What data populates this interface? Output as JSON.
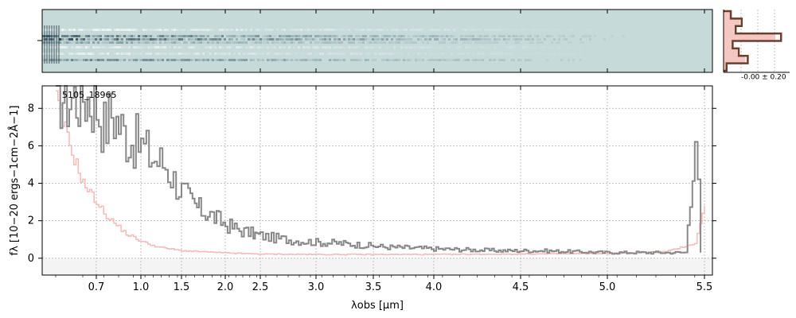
{
  "chart_data": [
    {
      "type": "heatmap",
      "panel": "2d-spectrum",
      "description_values": "2D spectral image, rows = spatial, columns = wavelength",
      "colors": {
        "background": "#c5dad9",
        "light": "#ffffff",
        "dark": "#0b1a2a"
      },
      "x_axis_shared": true
    },
    {
      "type": "line",
      "panel": "spatial-profile",
      "tick_label": "-0.00 ± 0.20",
      "x": [
        0,
        0.15,
        0.3,
        0.45,
        0.55,
        0.65,
        0.75,
        0.85,
        1.0
      ],
      "profile": [
        0.05,
        0.12,
        0.3,
        0.2,
        0.95,
        0.15,
        0.25,
        0.4,
        0.05
      ],
      "colors": {
        "line": "#6b3e2e",
        "fill": "#f5c7c2"
      }
    },
    {
      "type": "line",
      "panel": "1d-spectrum",
      "object_label": "5105_18965",
      "xlabel": "λobs [μm]",
      "ylabel": "fλ [10−20 ergs−1cm−2Å−1]",
      "x_ticks": [
        "0.7",
        "1.0",
        "1.5",
        "2.0",
        "2.5",
        "3.0",
        "3.5",
        "4.0",
        "4.5",
        "5.0",
        "5.5"
      ],
      "x_tick_positions": [
        0.7,
        1.0,
        1.5,
        2.0,
        2.5,
        3.0,
        3.5,
        4.0,
        4.5,
        5.0,
        5.5
      ],
      "y_ticks": [
        "0",
        "2",
        "4",
        "6",
        "8"
      ],
      "y_tick_positions": [
        0,
        2,
        4,
        6,
        8
      ],
      "ylim": [
        -0.9,
        9.2
      ],
      "xlim": [
        0.5,
        5.52
      ],
      "x_scale": "sqrt-like",
      "grid": true,
      "series": [
        {
          "role": "flux",
          "color": "#888888",
          "x": [
            0.55,
            0.6,
            0.65,
            0.7,
            0.75,
            0.8,
            0.9,
            1.0,
            1.1,
            1.2,
            1.3,
            1.4,
            1.5,
            1.6,
            1.7,
            1.8,
            1.9,
            2.0,
            2.2,
            2.4,
            2.6,
            2.8,
            3.0,
            3.2,
            3.4,
            3.6,
            3.8,
            4.0,
            4.2,
            4.4,
            4.6,
            4.8,
            5.0,
            5.2,
            5.4,
            5.45,
            5.48
          ],
          "y": [
            9.0,
            8.5,
            8.8,
            8.2,
            7.0,
            7.8,
            6.5,
            6.0,
            5.5,
            5.2,
            5.0,
            4.2,
            3.6,
            3.0,
            2.6,
            2.4,
            2.1,
            1.8,
            1.5,
            1.3,
            1.1,
            0.95,
            0.85,
            0.8,
            0.7,
            0.6,
            0.55,
            0.5,
            0.45,
            0.4,
            0.4,
            0.35,
            0.3,
            0.3,
            0.3,
            6.8,
            0.3
          ]
        },
        {
          "role": "error",
          "color": "#f7b9b9",
          "x": [
            0.55,
            0.6,
            0.65,
            0.7,
            0.75,
            0.8,
            0.9,
            1.0,
            1.2,
            1.5,
            2.0,
            2.5,
            3.0,
            3.5,
            4.0,
            4.5,
            5.0,
            5.3,
            5.45,
            5.5
          ],
          "y": [
            8.5,
            6.0,
            4.0,
            3.0,
            2.4,
            2.0,
            1.3,
            0.9,
            0.6,
            0.4,
            0.28,
            0.22,
            0.2,
            0.2,
            0.2,
            0.22,
            0.25,
            0.35,
            0.8,
            2.8
          ]
        }
      ]
    }
  ]
}
